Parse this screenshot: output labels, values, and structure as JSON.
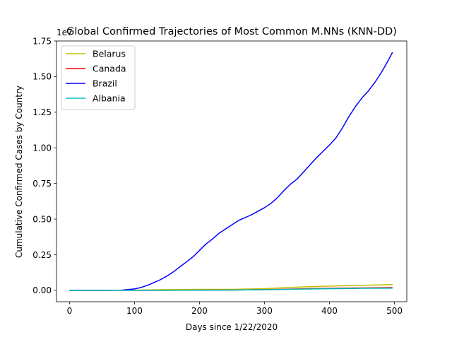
{
  "chart_data": {
    "type": "line",
    "title": "Global Confirmed Trajectories of Most Common M.NNs (KNN-DD)",
    "xlabel": "Days since 1/22/2020",
    "ylabel": "Cumulative Confirmed Cases by Country",
    "y_offset_label": "1e7",
    "xlim": [
      -20,
      519
    ],
    "ylim": [
      -0.08,
      1.75
    ],
    "y_scale_multiplier": 10000000,
    "xticks": [
      0,
      100,
      200,
      300,
      400,
      500
    ],
    "xtick_labels": [
      "0",
      "100",
      "200",
      "300",
      "400",
      "500"
    ],
    "yticks": [
      0.0,
      0.25,
      0.5,
      0.75,
      1.0,
      1.25,
      1.5,
      1.75
    ],
    "ytick_labels": [
      "0.00",
      "0.25",
      "0.50",
      "0.75",
      "1.00",
      "1.25",
      "1.50",
      "1.75"
    ],
    "grid": false,
    "legend_position": "top-left",
    "series": [
      {
        "name": "Belarus",
        "color": "#bfbf00",
        "x": [
          0,
          50,
          100,
          150,
          200,
          250,
          300,
          350,
          400,
          450,
          497
        ],
        "y": [
          0.0,
          0.0,
          0.001,
          0.005,
          0.007,
          0.007,
          0.012,
          0.022,
          0.03,
          0.035,
          0.04
        ]
      },
      {
        "name": "Canada",
        "color": "#ff0000",
        "x": [
          0,
          50,
          100,
          150,
          200,
          250,
          300,
          350,
          400,
          450,
          497
        ],
        "y": [
          0.0,
          0.0,
          0.0,
          0.0,
          0.001,
          0.002,
          0.005,
          0.01,
          0.014,
          0.017,
          0.019
        ]
      },
      {
        "name": "Brazil",
        "color": "#0000ff",
        "x": [
          0,
          60,
          80,
          100,
          110,
          120,
          130,
          140,
          150,
          160,
          170,
          180,
          190,
          200,
          210,
          220,
          230,
          240,
          250,
          260,
          270,
          280,
          290,
          300,
          310,
          320,
          330,
          340,
          350,
          360,
          370,
          380,
          390,
          400,
          410,
          420,
          430,
          440,
          450,
          460,
          470,
          480,
          490,
          497
        ],
        "y": [
          0.0,
          0.0,
          0.001,
          0.01,
          0.02,
          0.035,
          0.055,
          0.075,
          0.1,
          0.13,
          0.165,
          0.2,
          0.235,
          0.28,
          0.325,
          0.36,
          0.4,
          0.43,
          0.46,
          0.49,
          0.51,
          0.53,
          0.555,
          0.58,
          0.61,
          0.65,
          0.7,
          0.745,
          0.78,
          0.83,
          0.88,
          0.93,
          0.975,
          1.02,
          1.07,
          1.14,
          1.22,
          1.29,
          1.35,
          1.4,
          1.46,
          1.53,
          1.61,
          1.67
        ]
      },
      {
        "name": "Albania",
        "color": "#00bfbf",
        "x": [
          0,
          50,
          100,
          150,
          200,
          250,
          300,
          350,
          400,
          450,
          497
        ],
        "y": [
          0.0,
          0.0,
          0.0,
          0.0,
          0.001,
          0.002,
          0.004,
          0.008,
          0.011,
          0.014,
          0.015
        ]
      }
    ]
  }
}
